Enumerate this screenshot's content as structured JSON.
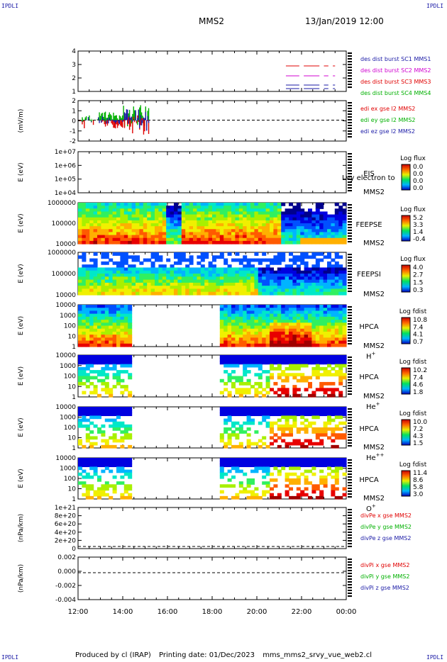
{
  "corner_label": "IPDLI",
  "header": {
    "title": "MMS2",
    "date": "13/Jan/2019 12:00"
  },
  "footer": {
    "produced_by": "Produced by cl (IRAP)",
    "printing_date": "Printing date: 01/Dec/2023",
    "filename": "mms_mms2_srvy_vue_web2.cl"
  },
  "chart_data": [
    {
      "id": "des-dist",
      "type": "line",
      "ytick_labels": [
        "4",
        "3",
        "2",
        "1"
      ],
      "legend": [
        {
          "label": "des dist burst SC1 MMS1",
          "color": "#1a1aa6"
        },
        {
          "label": "des dist burst SC2 MMS2",
          "color": "#d000d0"
        },
        {
          "label": "des dist burst SC3 MMS3",
          "color": "#e00000"
        },
        {
          "label": "des dist burst SC4 MMS4",
          "color": "#00b000"
        }
      ]
    },
    {
      "id": "edi",
      "type": "line",
      "ylabel": "(mV/m)",
      "ytick_labels": [
        "2",
        "1",
        "0",
        "-1",
        "-2"
      ],
      "legend": [
        {
          "label": "edi ex gse l2 MMS2",
          "color": "#e00000"
        },
        {
          "label": "edi ey gse l2 MMS2",
          "color": "#00b000"
        },
        {
          "label": "edi ez gse l2 MMS2",
          "color": "#1a1aa6"
        }
      ]
    },
    {
      "id": "eis",
      "type": "heatmap",
      "ylabel": "E (eV)",
      "ytick_labels": [
        "1e+07",
        "1e+06",
        "1e+05",
        "1e+04"
      ],
      "labels": [
        "EIS",
        "MMS2"
      ],
      "overlay_text": "Lvy electron to",
      "colorbar": {
        "title": "Log flux",
        "ticks": [
          "0.0",
          "0.0",
          "0.0",
          "0.0"
        ]
      }
    },
    {
      "id": "feepse",
      "type": "heatmap",
      "ylabel": "E (eV)",
      "ytick_labels": [
        "1000000",
        "100000",
        "10000"
      ],
      "labels": [
        "FEEPSE",
        "MMS2"
      ],
      "colorbar": {
        "title": "Log flux",
        "ticks": [
          "5.2",
          "3.3",
          "1.4",
          "-0.4"
        ]
      }
    },
    {
      "id": "feepsi",
      "type": "heatmap",
      "ylabel": "E (eV)",
      "ytick_labels": [
        "1000000",
        "100000",
        "10000"
      ],
      "labels": [
        "FEEPSI",
        "MMS2"
      ],
      "colorbar": {
        "title": "Log flux",
        "ticks": [
          "4.0",
          "2.7",
          "1.5",
          "0.3"
        ]
      }
    },
    {
      "id": "hpca-h",
      "type": "heatmap",
      "ylabel": "E (eV)",
      "ytick_labels": [
        "10000",
        "1000",
        "100",
        "10",
        "1"
      ],
      "labels": [
        "HPCA",
        "MMS2"
      ],
      "species": "H",
      "species_sup": "+",
      "colorbar": {
        "title": "Log fdist",
        "ticks": [
          "10.8",
          "7.4",
          "4.1",
          "0.7"
        ]
      }
    },
    {
      "id": "hpca-he",
      "type": "heatmap",
      "ylabel": "E (eV)",
      "ytick_labels": [
        "10000",
        "1000",
        "100",
        "10",
        "1"
      ],
      "labels": [
        "HPCA",
        "MMS2"
      ],
      "species": "He",
      "species_sup": "+",
      "colorbar": {
        "title": "Log fdist",
        "ticks": [
          "10.2",
          "7.4",
          "4.6",
          "1.8"
        ]
      }
    },
    {
      "id": "hpca-he2",
      "type": "heatmap",
      "ylabel": "E (eV)",
      "ytick_labels": [
        "10000",
        "1000",
        "100",
        "10",
        "1"
      ],
      "labels": [
        "HPCA",
        "MMS2"
      ],
      "species": "He",
      "species_sup": "++",
      "colorbar": {
        "title": "Log fdist",
        "ticks": [
          "10.0",
          "7.2",
          "4.3",
          "1.5"
        ]
      }
    },
    {
      "id": "hpca-o",
      "type": "heatmap",
      "ylabel": "E (eV)",
      "ytick_labels": [
        "10000",
        "1000",
        "100",
        "10",
        "1"
      ],
      "labels": [
        "HPCA",
        "MMS2"
      ],
      "species": "O",
      "species_sup": "+",
      "colorbar": {
        "title": "Log fdist",
        "ticks": [
          "11.4",
          "8.6",
          "5.8",
          "3.0"
        ]
      }
    },
    {
      "id": "divpe",
      "type": "line",
      "ylabel": "(nPa/km)",
      "ytick_labels": [
        "1e+21",
        "8e+20",
        "6e+20",
        "4e+20",
        "2e+20",
        "0"
      ],
      "legend": [
        {
          "label": "divPe x gse MMS2",
          "color": "#e00000"
        },
        {
          "label": "divPe y gse MMS2",
          "color": "#00b000"
        },
        {
          "label": "divPe z gse MMS2",
          "color": "#1a1aa6"
        }
      ]
    },
    {
      "id": "divpi",
      "type": "line",
      "ylabel": "(nPa/km)",
      "ytick_labels": [
        "0.002",
        "0.000",
        "-0.002",
        "-0.004"
      ],
      "legend": [
        {
          "label": "divPi x gse MMS2",
          "color": "#e00000"
        },
        {
          "label": "divPi y gse MMS2",
          "color": "#00b000"
        },
        {
          "label": "divPi z gse MMS2",
          "color": "#1a1aa6"
        }
      ]
    }
  ],
  "x_axis": {
    "tick_labels": [
      "12:00",
      "14:00",
      "16:00",
      "18:00",
      "20:00",
      "22:00",
      "00:00"
    ],
    "hours": [
      12,
      14,
      16,
      18,
      20,
      22,
      24
    ],
    "range": [
      12,
      24
    ]
  }
}
